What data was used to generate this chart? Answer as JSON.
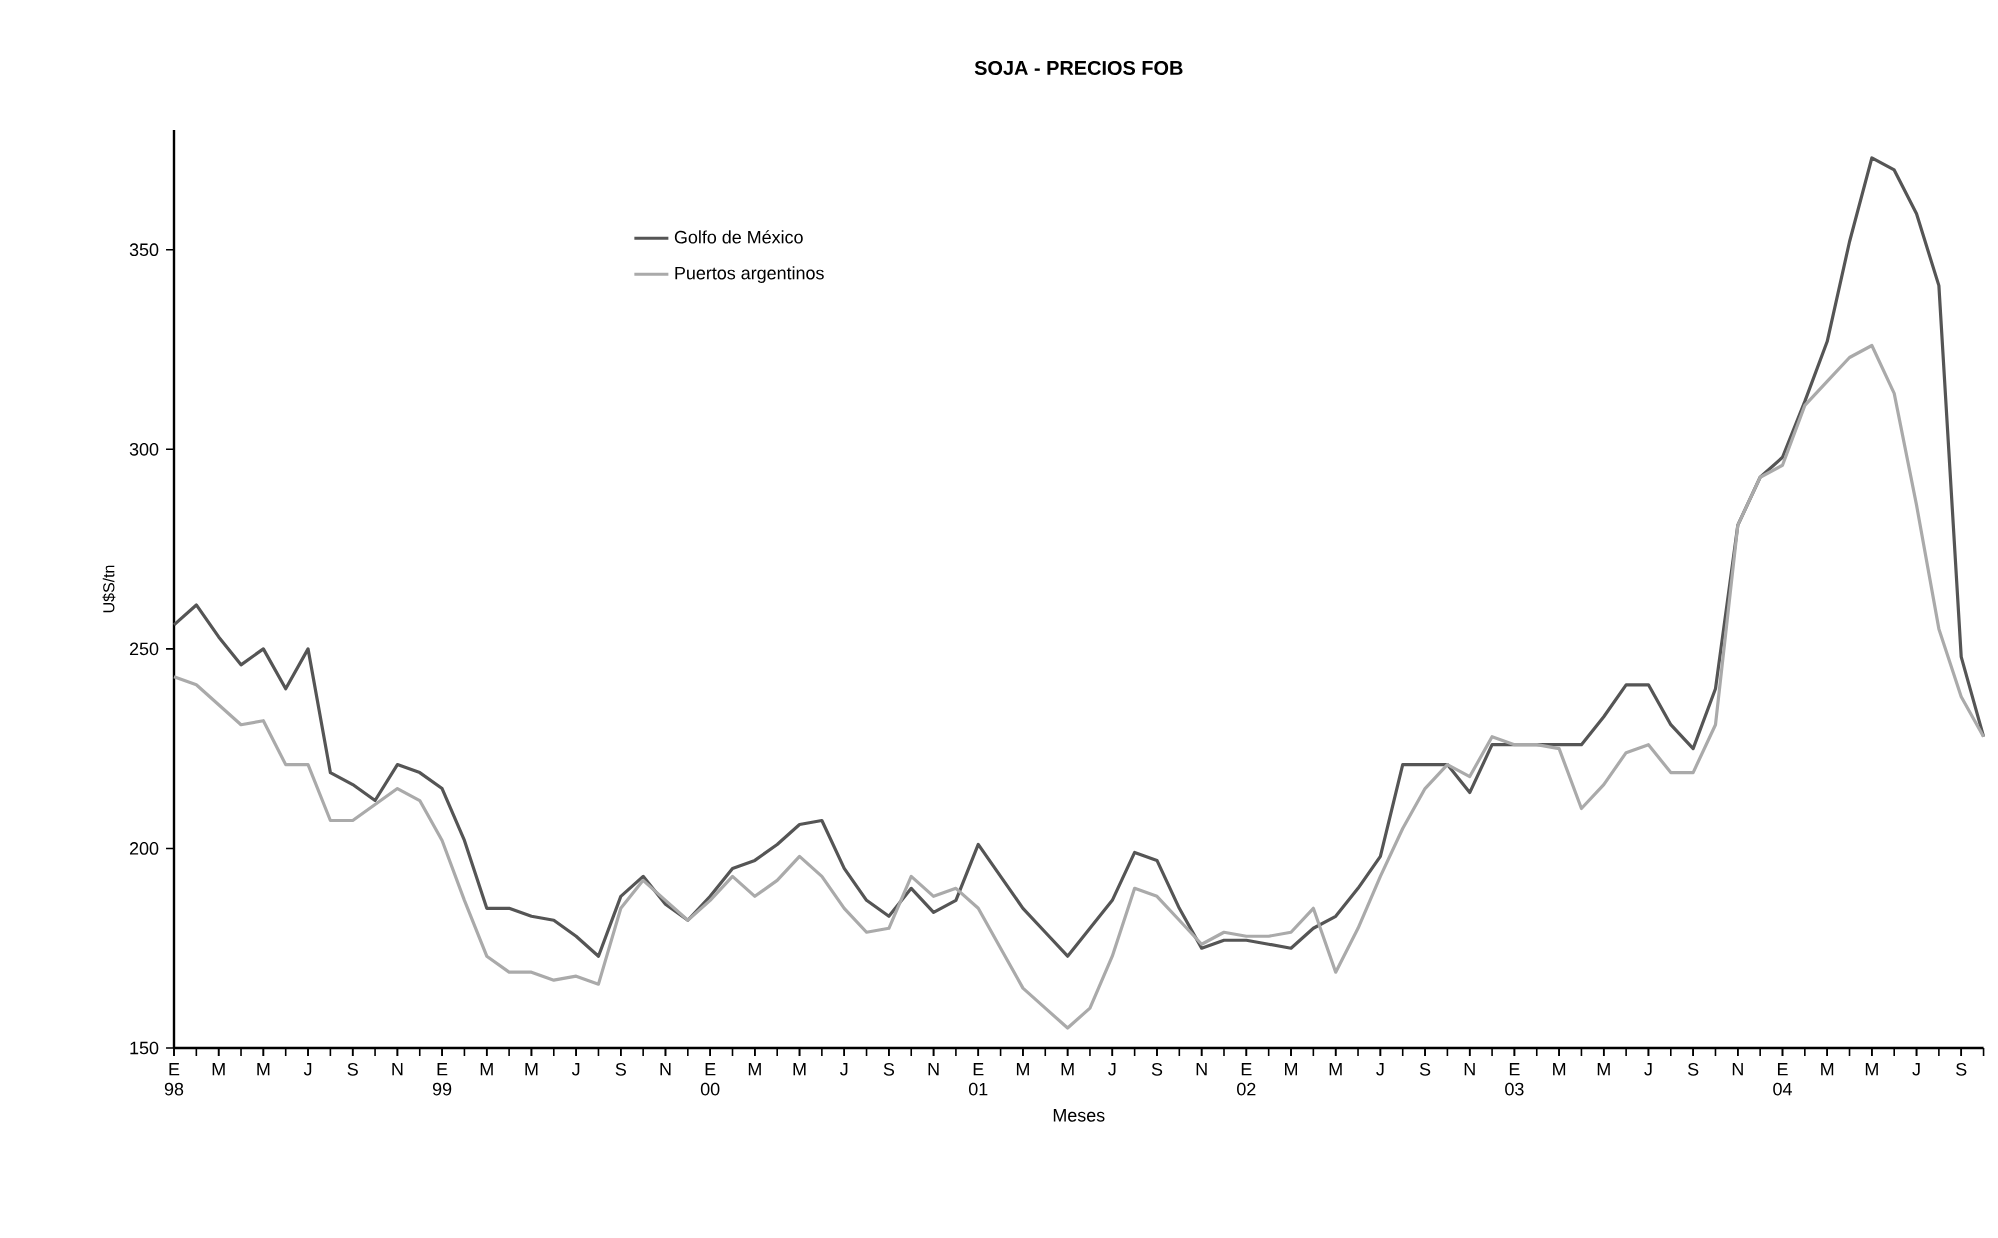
{
  "chart_data": {
    "type": "line",
    "title": "SOJA - PRECIOS FOB",
    "xlabel": "Meses",
    "ylabel": "U$S/tn",
    "x": [
      "1998-01",
      "1998-02",
      "1998-03",
      "1998-04",
      "1998-05",
      "1998-06",
      "1998-07",
      "1998-08",
      "1998-09",
      "1998-10",
      "1998-11",
      "1998-12",
      "1999-01",
      "1999-02",
      "1999-03",
      "1999-04",
      "1999-05",
      "1999-06",
      "1999-07",
      "1999-08",
      "1999-09",
      "1999-10",
      "1999-11",
      "1999-12",
      "2000-01",
      "2000-02",
      "2000-03",
      "2000-04",
      "2000-05",
      "2000-06",
      "2000-07",
      "2000-08",
      "2000-09",
      "2000-10",
      "2000-11",
      "2000-12",
      "2001-01",
      "2001-02",
      "2001-03",
      "2001-04",
      "2001-05",
      "2001-06",
      "2001-07",
      "2001-08",
      "2001-09",
      "2001-10",
      "2001-11",
      "2001-12",
      "2002-01",
      "2002-02",
      "2002-03",
      "2002-04",
      "2002-05",
      "2002-06",
      "2002-07",
      "2002-08",
      "2002-09",
      "2002-10",
      "2002-11",
      "2002-12",
      "2003-01",
      "2003-02",
      "2003-03",
      "2003-04",
      "2003-05",
      "2003-06",
      "2003-07",
      "2003-08",
      "2003-09",
      "2003-10",
      "2003-11",
      "2003-12",
      "2004-01",
      "2004-02",
      "2004-03",
      "2004-04",
      "2004-05",
      "2004-06",
      "2004-07",
      "2004-08",
      "2004-09",
      "2004-10"
    ],
    "series": [
      {
        "name": "Golfo de México",
        "color": "#555555",
        "values": [
          256,
          261,
          253,
          246,
          250,
          240,
          250,
          219,
          216,
          212,
          221,
          219,
          215,
          202,
          185,
          185,
          183,
          182,
          178,
          173,
          188,
          193,
          186,
          182,
          188,
          195,
          197,
          201,
          206,
          207,
          195,
          187,
          183,
          190,
          184,
          187,
          201,
          193,
          185,
          179,
          173,
          180,
          187,
          199,
          197,
          185,
          175,
          177,
          177,
          176,
          175,
          180,
          183,
          190,
          198,
          221,
          221,
          221,
          214,
          226,
          226,
          226,
          226,
          226,
          233,
          241,
          241,
          231,
          225,
          240,
          281,
          293,
          298,
          312,
          327,
          352,
          373,
          370,
          359,
          341,
          248,
          228
        ]
      },
      {
        "name": "Puertos argentinos",
        "color": "#aaaaaa",
        "values": [
          243,
          241,
          236,
          231,
          232,
          221,
          221,
          207,
          207,
          211,
          215,
          212,
          202,
          187,
          173,
          169,
          169,
          167,
          168,
          166,
          185,
          192,
          187,
          182,
          187,
          193,
          188,
          192,
          198,
          193,
          185,
          179,
          180,
          193,
          188,
          190,
          185,
          175,
          165,
          160,
          155,
          160,
          173,
          190,
          188,
          182,
          176,
          179,
          178,
          178,
          179,
          185,
          169,
          180,
          193,
          205,
          215,
          221,
          218,
          228,
          226,
          226,
          225,
          210,
          216,
          224,
          226,
          219,
          219,
          231,
          281,
          293,
          296,
          311,
          317,
          323,
          326,
          314,
          286,
          255,
          238,
          228
        ]
      }
    ],
    "xlim": [
      "1998-01",
      "2004-10"
    ],
    "xticks": [
      {
        "value": "1998-01",
        "label": "E 98"
      },
      {
        "value": "1998-03",
        "label": "M"
      },
      {
        "value": "1998-05",
        "label": "M"
      },
      {
        "value": "1998-07",
        "label": "J"
      },
      {
        "value": "1998-09",
        "label": "S"
      },
      {
        "value": "1998-11",
        "label": "N"
      },
      {
        "value": "1999-01",
        "label": "E 99"
      },
      {
        "value": "1999-03",
        "label": "M"
      },
      {
        "value": "1999-05",
        "label": "M"
      },
      {
        "value": "1999-07",
        "label": "J"
      },
      {
        "value": "1999-09",
        "label": "S"
      },
      {
        "value": "1999-11",
        "label": "N"
      },
      {
        "value": "2000-01",
        "label": "E 00"
      },
      {
        "value": "2000-03",
        "label": "M"
      },
      {
        "value": "2000-05",
        "label": "M"
      },
      {
        "value": "2000-07",
        "label": "J"
      },
      {
        "value": "2000-09",
        "label": "S"
      },
      {
        "value": "2000-11",
        "label": "N"
      },
      {
        "value": "2001-01",
        "label": "E 01"
      },
      {
        "value": "2001-03",
        "label": "M"
      },
      {
        "value": "2001-05",
        "label": "M"
      },
      {
        "value": "2001-07",
        "label": "J"
      },
      {
        "value": "2001-09",
        "label": "S"
      },
      {
        "value": "2001-11",
        "label": "N"
      },
      {
        "value": "2002-01",
        "label": "E 02"
      },
      {
        "value": "2002-03",
        "label": "M"
      },
      {
        "value": "2002-05",
        "label": "M"
      },
      {
        "value": "2002-07",
        "label": "J"
      },
      {
        "value": "2002-09",
        "label": "S"
      },
      {
        "value": "2002-11",
        "label": "N"
      },
      {
        "value": "2003-01",
        "label": "E 03"
      },
      {
        "value": "2003-03",
        "label": "M"
      },
      {
        "value": "2003-05",
        "label": "M"
      },
      {
        "value": "2003-07",
        "label": "J"
      },
      {
        "value": "2003-09",
        "label": "S"
      },
      {
        "value": "2003-11",
        "label": "N"
      },
      {
        "value": "2004-01",
        "label": "E 04"
      },
      {
        "value": "2004-03",
        "label": "M"
      },
      {
        "value": "2004-05",
        "label": "M"
      },
      {
        "value": "2004-07",
        "label": "J"
      },
      {
        "value": "2004-09",
        "label": "S"
      }
    ],
    "ylim": [
      150,
      380
    ],
    "yticks": [
      150,
      200,
      250,
      300,
      350
    ],
    "legend": "top left",
    "grid": false,
    "marker": "none",
    "line_style": "solid"
  }
}
